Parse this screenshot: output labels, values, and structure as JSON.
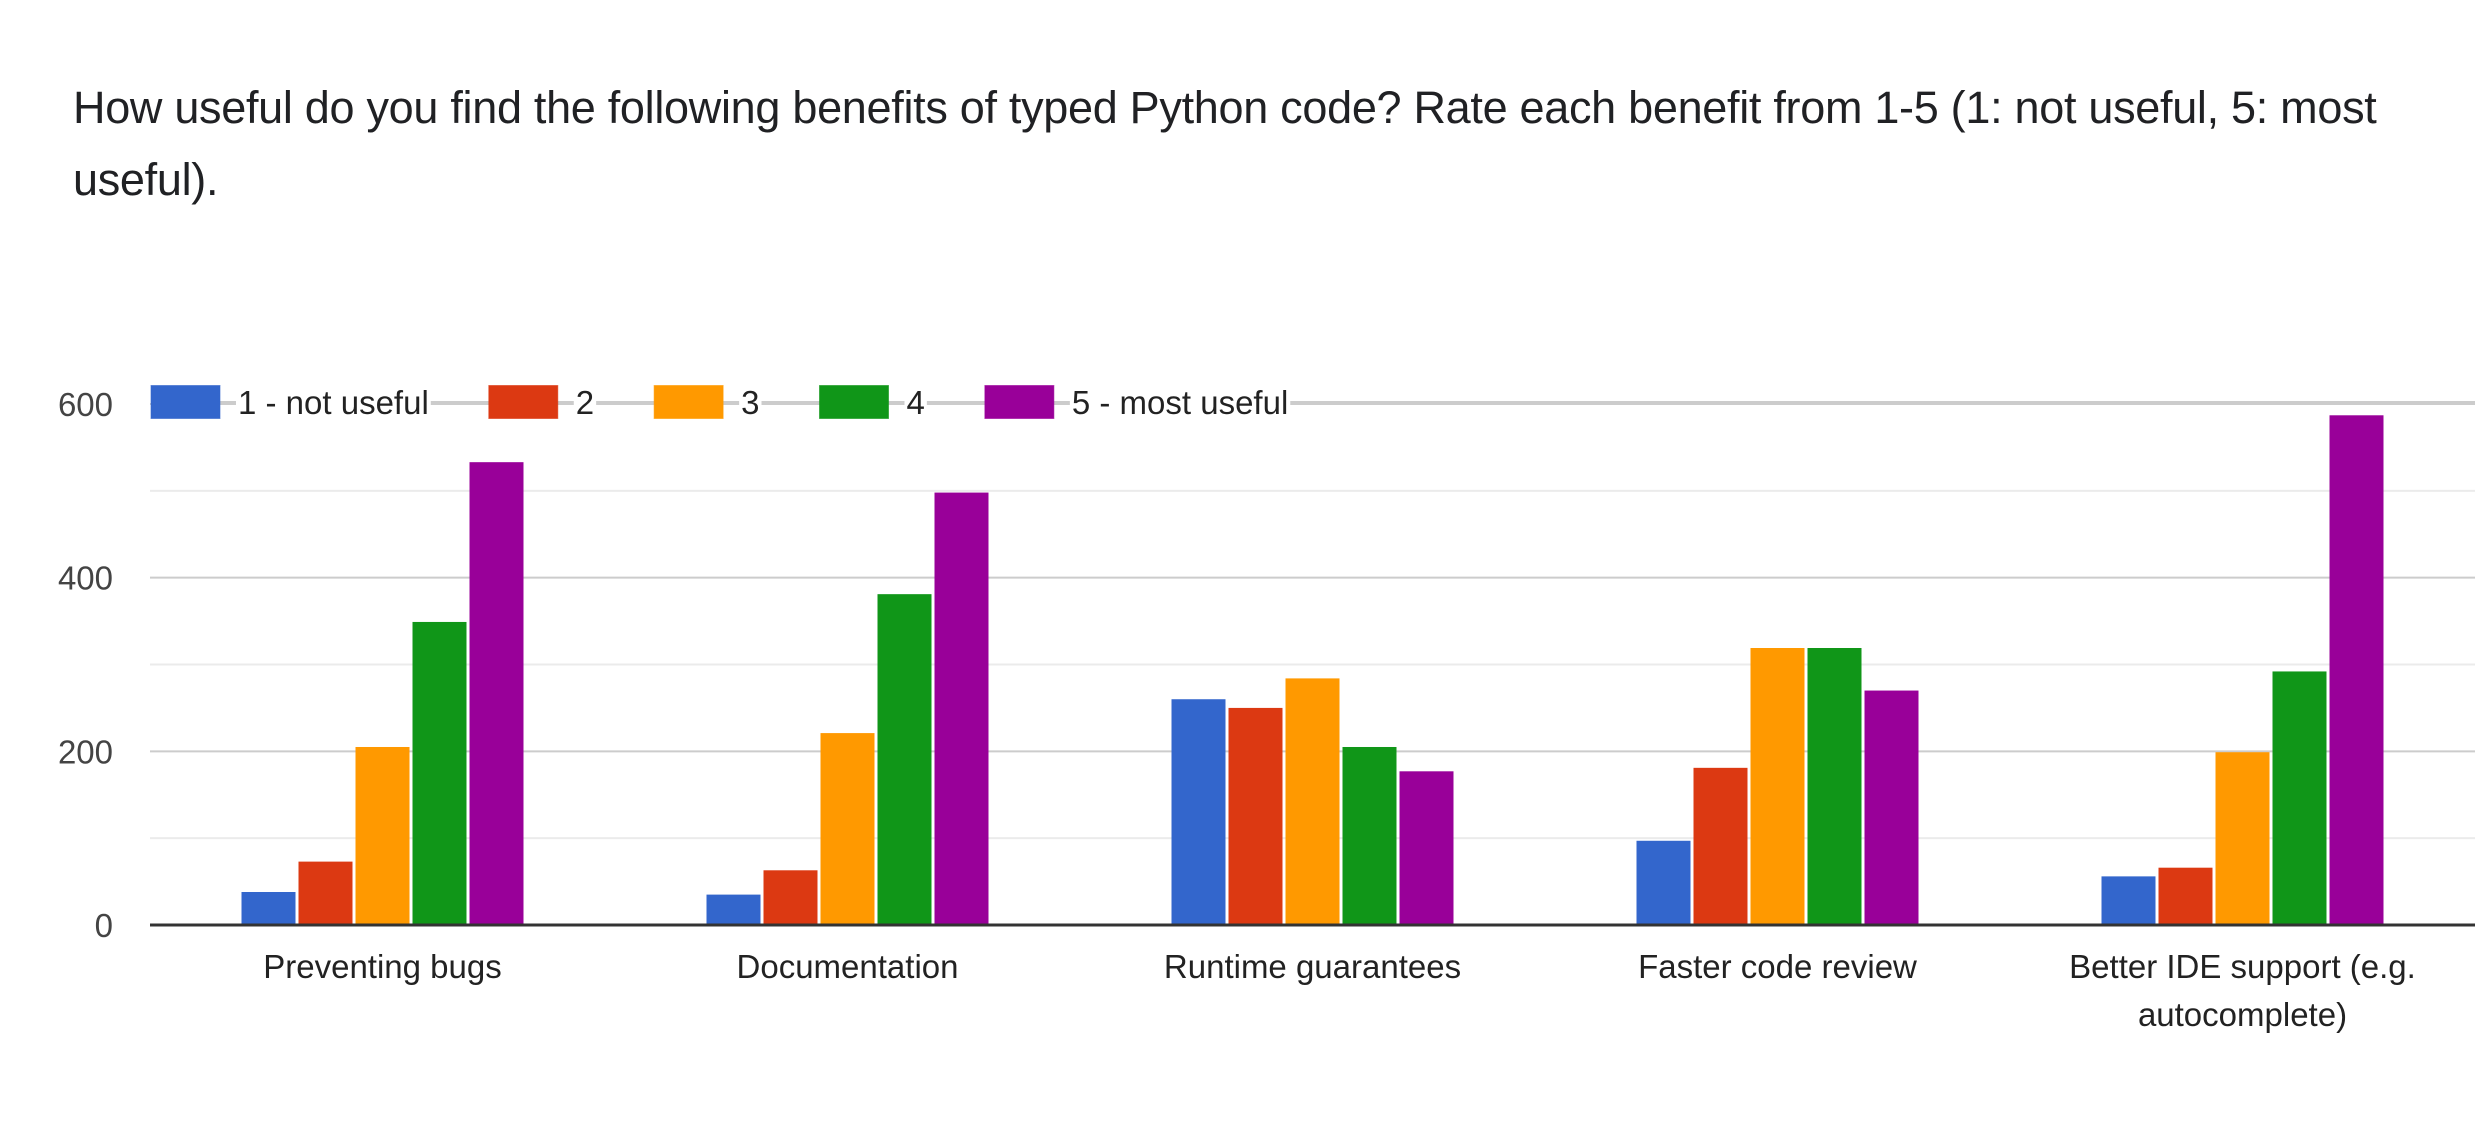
{
  "title": "How useful do you find the following benefits of typed Python code?  Rate each benefit from 1-5 (1: not useful, 5: most useful).",
  "chart_data": {
    "type": "bar",
    "title": "How useful do you find the following benefits of typed Python code?  Rate each benefit from 1-5 (1: not useful, 5: most useful).",
    "xlabel": "",
    "ylabel": "",
    "categories": [
      [
        "Preventing bugs"
      ],
      [
        "Documentation"
      ],
      [
        "Runtime guarantees"
      ],
      [
        "Faster code review"
      ],
      [
        "Better IDE support (e.g.",
        "autocomplete)"
      ]
    ],
    "series": [
      {
        "name": "1 - not useful",
        "color": "#3366cc",
        "values": [
          38,
          35,
          260,
          97,
          56
        ]
      },
      {
        "name": "2",
        "color": "#dc3912",
        "values": [
          73,
          63,
          250,
          181,
          66
        ]
      },
      {
        "name": "3",
        "color": "#ff9900",
        "values": [
          205,
          221,
          284,
          319,
          199
        ]
      },
      {
        "name": "4",
        "color": "#109618",
        "values": [
          349,
          381,
          205,
          319,
          292
        ]
      },
      {
        "name": "5 - most useful",
        "color": "#990099",
        "values": [
          533,
          498,
          177,
          270,
          587
        ]
      }
    ],
    "ylim": [
      0,
      600
    ],
    "yticks": [
      0,
      200,
      400,
      600
    ],
    "minor_gridlines": [
      100,
      300,
      500
    ],
    "grid": true,
    "legend_position": "top-left"
  }
}
